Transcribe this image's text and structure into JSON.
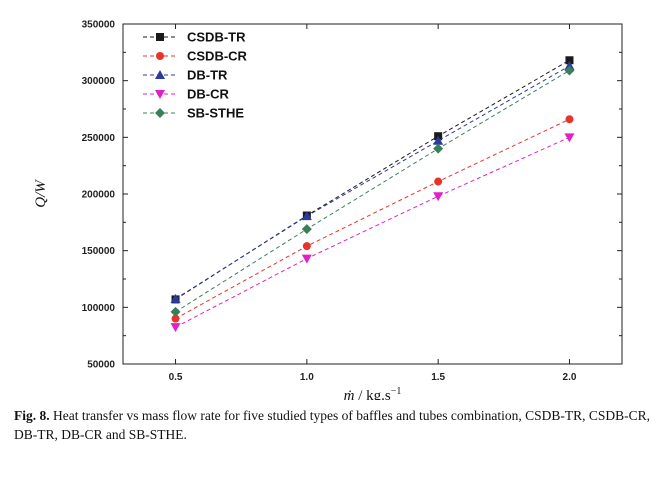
{
  "chart_data": {
    "type": "line",
    "title": "",
    "xlabel": "ṁ / kg.s",
    "xlabel_sup": "−1",
    "ylabel": "Q/W",
    "categories": [
      "0.5",
      "1.0",
      "1.5",
      "2.0"
    ],
    "x": [
      0.5,
      1.0,
      1.5,
      2.0
    ],
    "xlim": [
      0.3,
      2.2
    ],
    "ylim": [
      50000,
      350000
    ],
    "yticks": [
      50000,
      100000,
      150000,
      200000,
      250000,
      300000,
      350000
    ],
    "ytick_labels": [
      "50000",
      "100000",
      "150000",
      "200000",
      "250000",
      "300000",
      "350000"
    ],
    "grid": false,
    "legend_position": "top-left",
    "series": [
      {
        "name": "CSDB-TR",
        "marker": "square",
        "color": "#1a1a1a",
        "values": [
          107000,
          181000,
          251000,
          318000
        ]
      },
      {
        "name": "CSDB-CR",
        "marker": "circle",
        "color": "#e8332a",
        "values": [
          90000,
          154000,
          211000,
          266000
        ]
      },
      {
        "name": "DB-TR",
        "marker": "triangle-up",
        "color": "#2b3a9c",
        "values": [
          107500,
          180500,
          247000,
          313000
        ]
      },
      {
        "name": "DB-CR",
        "marker": "triangle-down",
        "color": "#e020c8",
        "values": [
          82500,
          143000,
          198000,
          250000
        ]
      },
      {
        "name": "SB-STHE",
        "marker": "diamond",
        "color": "#3b7f5a",
        "values": [
          96000,
          169000,
          240000,
          309000
        ]
      }
    ]
  },
  "caption": {
    "label": "Fig. 8.",
    "text": "Heat transfer vs mass flow rate for five studied types of baffles and tubes combination, CSDB-TR, CSDB-CR, DB-TR, DB-CR and SB-STHE."
  }
}
